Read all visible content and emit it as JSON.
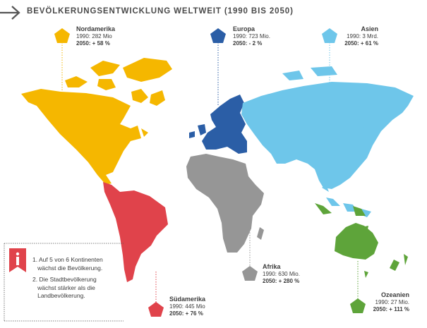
{
  "header": {
    "title": "BEVÖLKERUNGSENTWICKLUNG WELTWEIT (1990 BIS 2050)"
  },
  "regions": {
    "nordamerika": {
      "name": "Nordamerika",
      "line1": "1990: 282 Mio",
      "line2": "2050: + 58 %",
      "color": "#f5b700"
    },
    "europa": {
      "name": "Europa",
      "line1": "1990: 723 Mio.",
      "line2": "2050: - 2 %",
      "color": "#2b5ea6"
    },
    "asien": {
      "name": "Asien",
      "line1": "1990: 3 Mrd.",
      "line2": "2050: + 61 %",
      "color": "#6ec6ea"
    },
    "afrika": {
      "name": "Afrika",
      "line1": "1990: 630 Mio.",
      "line2": "2050: + 280 %",
      "color": "#969696"
    },
    "suedamerika": {
      "name": "Südamerika",
      "line1": "1990: 445 Mio",
      "line2": "2050: + 76 %",
      "color": "#e0434b"
    },
    "ozeanien": {
      "name": "Ozeanien",
      "line1": "1990: 27 Mio.",
      "line2": "2050: + 111 %",
      "color": "#5ea43a"
    }
  },
  "info": {
    "icon": "info-icon",
    "point1_line1": "1. Auf 5 von 6 Kontinenten",
    "point1_line2": "wächst die Bevölkerung.",
    "point2_line1": "2. Die Stadtbevölkerung",
    "point2_line2": "wächst stärker als die",
    "point2_line3": "Landbevölkerung."
  },
  "icons": {
    "header": "arrow-right-icon"
  }
}
